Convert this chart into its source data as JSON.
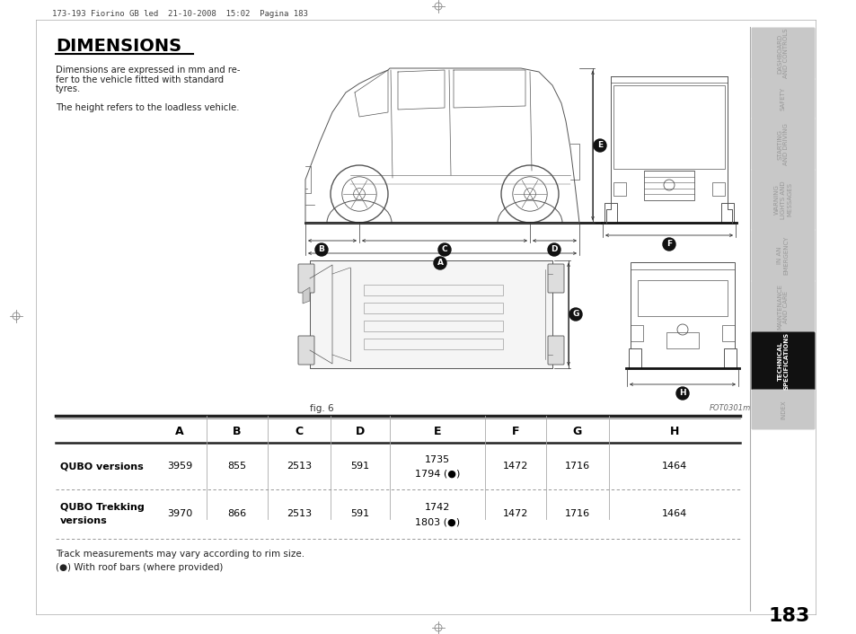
{
  "title": "DIMENSIONS",
  "description_line1": "Dimensions are expressed in mm and re-",
  "description_line2": "fer to the vehicle fitted with standard",
  "description_line3": "tyres.",
  "description_line4": "The height refers to the loadless vehicle.",
  "fig_label": "fig. 6",
  "foto_label": "FOT0301m",
  "header_top": "173-193 Fiorino GB led  21-10-2008  15:02  Pagina 183",
  "page_number": "183",
  "table_headers": [
    "A",
    "B",
    "C",
    "D",
    "E",
    "F",
    "G",
    "H"
  ],
  "row1_label": "QUBO versions",
  "row2_label1": "QUBO Trekking",
  "row2_label2": "versions",
  "row1_A": "3959",
  "row1_B": "855",
  "row1_C": "2513",
  "row1_D": "591",
  "row1_E1": "1735",
  "row1_E2": "1794 (●)",
  "row1_F": "1472",
  "row1_G": "1716",
  "row1_H": "1464",
  "row2_A": "3970",
  "row2_B": "866",
  "row2_C": "2513",
  "row2_D": "591",
  "row2_E1": "1742",
  "row2_E2": "1803 (●)",
  "row2_F": "1472",
  "row2_G": "1716",
  "row2_H": "1464",
  "footnote1": "Track measurements may vary according to rim size.",
  "footnote2": "(●) With roof bars (where provided)",
  "sidebar_labels": [
    "DASHBOARD\nAND CONTROLS",
    "SAFETY",
    "STARTING\nAND DRIVING",
    "WARNING\nLIGHTS AND\nMESSAGES",
    "IN AN\nEMERGENCY",
    "MAINTENANCE\nAND CARE",
    "TECHNICAL\nSPECIFICATIONS",
    "INDEX"
  ],
  "sidebar_active": 6,
  "bg_color": "#ffffff",
  "sidebar_bg": "#c8c8c8",
  "sidebar_active_bg": "#111111",
  "sidebar_text_color": "#999999",
  "sidebar_active_text": "#ffffff",
  "title_color": "#000000",
  "text_color": "#222222"
}
